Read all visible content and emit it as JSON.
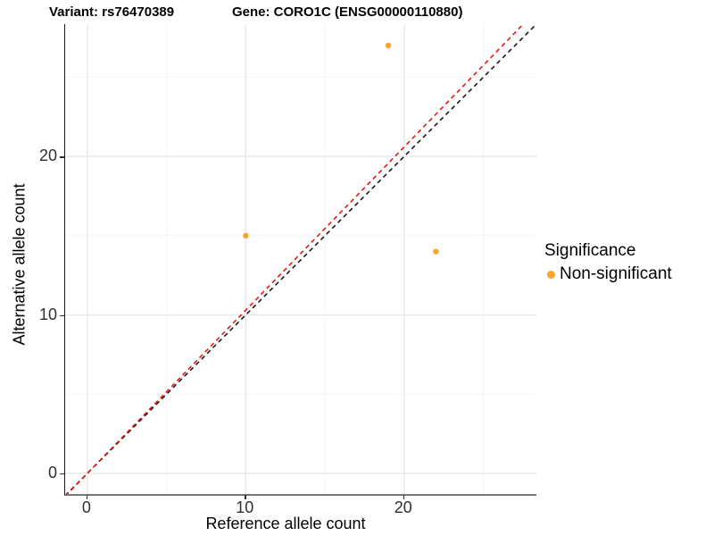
{
  "titles": {
    "variant": "Variant: rs76470389",
    "gene": "Gene: CORO1C (ENSG00000110880)"
  },
  "axes": {
    "x_label": "Reference allele count",
    "y_label": "Alternative allele count"
  },
  "legend": {
    "title": "Significance",
    "items": [
      {
        "label": "Non-significant",
        "color": "#F9A331",
        "marker": "dot"
      }
    ]
  },
  "colors": {
    "background": "#ffffff",
    "grid_major": "#e8e8e8",
    "grid_minor": "#f4f4f4",
    "axis_line": "#1a1a1a",
    "tick_text": "#303030",
    "point": "#F9A331",
    "identity_line": "#1a1a1a",
    "fitted_line": "#e8190d"
  },
  "chart_data": {
    "type": "scatter",
    "title": "Variant: rs76470389   Gene: CORO1C (ENSG00000110880)",
    "xlabel": "Reference allele count",
    "ylabel": "Alternative allele count",
    "xlim": [
      -1.4,
      28.35
    ],
    "ylim": [
      -1.3,
      28.35
    ],
    "x_ticks": [
      0,
      10,
      20
    ],
    "y_ticks": [
      0,
      10,
      20
    ],
    "x_minor_ticks": [
      5,
      15,
      25
    ],
    "y_minor_ticks": [
      5,
      15,
      25
    ],
    "grid": true,
    "legend_position": "right",
    "series": [
      {
        "name": "Non-significant",
        "color": "#F9A331",
        "point_radius": 3.2,
        "points": [
          {
            "x": 19,
            "y": 27
          },
          {
            "x": 10,
            "y": 15
          },
          {
            "x": 22,
            "y": 14
          }
        ]
      }
    ],
    "lines": [
      {
        "name": "identity-line",
        "slope": 1.0,
        "intercept": 0,
        "color": "#1a1a1a",
        "style": "dashed"
      },
      {
        "name": "fitted-line",
        "slope": 1.03,
        "intercept": 0,
        "color": "#e8190d",
        "style": "dashed"
      }
    ]
  }
}
